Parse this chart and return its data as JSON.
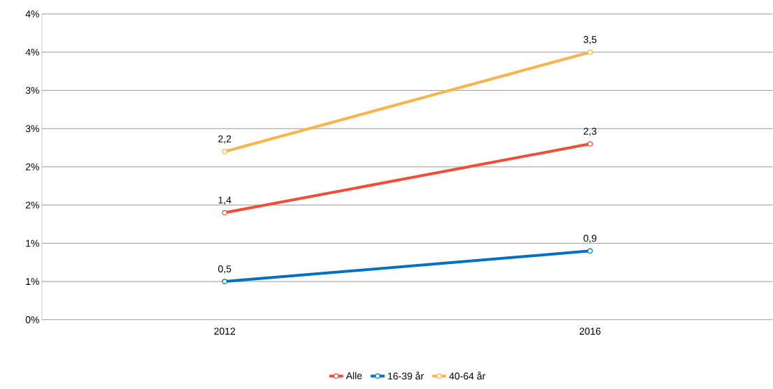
{
  "chart_data": {
    "type": "line",
    "categories": [
      "2012",
      "2016"
    ],
    "series": [
      {
        "name": "Alle",
        "color": "#f04e37",
        "values": [
          1.4,
          2.3
        ],
        "value_labels": [
          "1,4",
          "2,3"
        ]
      },
      {
        "name": "16-39 år",
        "color": "#0070c0",
        "values": [
          0.5,
          0.9
        ],
        "value_labels": [
          "0,5",
          "0,9"
        ]
      },
      {
        "name": "40-64 år",
        "color": "#f9b54c",
        "values": [
          2.2,
          3.5
        ],
        "value_labels": [
          "2,2",
          "3,5"
        ]
      }
    ],
    "ylim": [
      0,
      4
    ],
    "yticks": [
      {
        "value": 0,
        "label": "0%"
      },
      {
        "value": 0.5,
        "label": "1%"
      },
      {
        "value": 1,
        "label": "1%"
      },
      {
        "value": 1.5,
        "label": "2%"
      },
      {
        "value": 2,
        "label": "2%"
      },
      {
        "value": 2.5,
        "label": "3%"
      },
      {
        "value": 3,
        "label": "3%"
      },
      {
        "value": 3.5,
        "label": "4%"
      },
      {
        "value": 4,
        "label": "4%"
      }
    ],
    "grid": "y",
    "legend": "bottom",
    "marker": "circle",
    "line_style": "solid"
  }
}
